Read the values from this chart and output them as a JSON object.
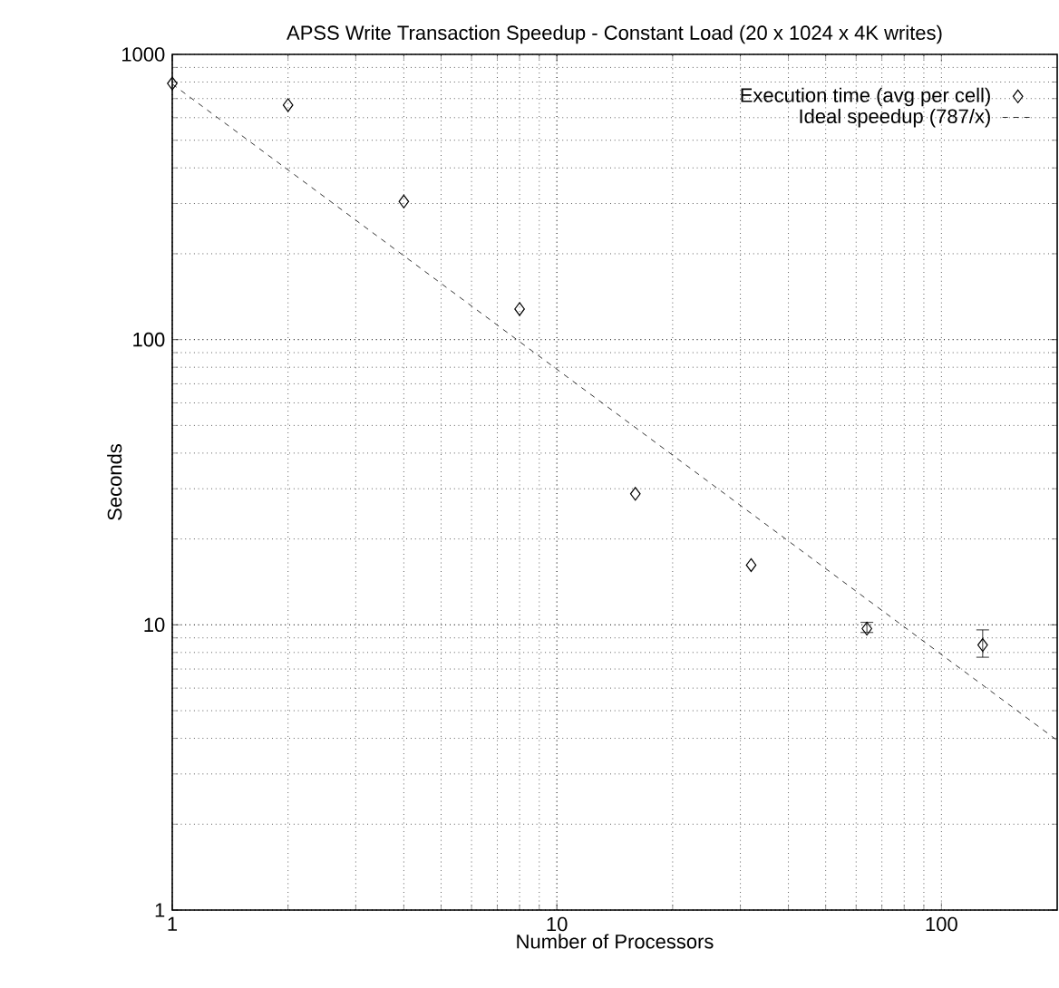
{
  "chart_data": {
    "type": "scatter",
    "title": "APSS Write Transaction Speedup - Constant Load (20 x 1024 x 4K writes)",
    "xlabel": "Number of Processors",
    "ylabel": "Seconds",
    "log": "xy",
    "grid": true,
    "legend": "top right",
    "xlim": [
      1,
      200
    ],
    "ylim": [
      1,
      1000
    ],
    "xticks": [
      1,
      10,
      100
    ],
    "yticks": [
      1,
      10,
      100,
      1000
    ],
    "series": [
      {
        "name": "Execution time (avg per cell)",
        "color": "#000000",
        "marker": "diamond",
        "x": [
          1,
          2,
          4,
          8,
          16,
          32,
          64,
          128
        ],
        "values": [
          791,
          664,
          305,
          128,
          28.8,
          16.2,
          9.7,
          8.5
        ],
        "errors": [
          null,
          null,
          null,
          null,
          null,
          null,
          [
            9.4,
            10.2
          ],
          [
            7.7,
            9.6
          ]
        ]
      },
      {
        "name": "Ideal speedup (787/x)",
        "type": "line",
        "color": "#000000",
        "marker": "none",
        "line_style": "dashed",
        "x": [
          1,
          200
        ],
        "values": [
          787,
          3.935
        ]
      }
    ]
  }
}
